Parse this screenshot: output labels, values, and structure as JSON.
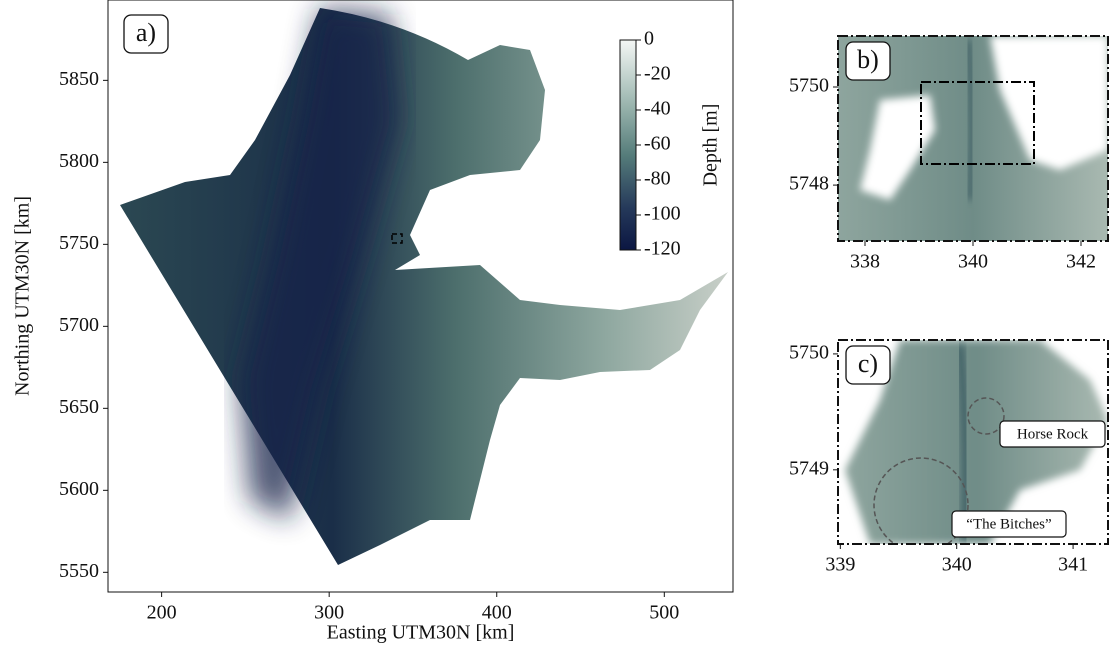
{
  "panels": [
    {
      "label": "a)",
      "xlabel": "Easting UTM30N [km]",
      "ylabel": "Northing UTM30N [km]",
      "xlim": [
        168,
        541
      ],
      "ylim": [
        5538,
        5899
      ],
      "xticks": [
        200,
        300,
        400,
        500
      ],
      "yticks": [
        5550,
        5600,
        5650,
        5700,
        5750,
        5800,
        5850
      ]
    },
    {
      "label": "b)",
      "xlim": [
        337.5,
        342.5
      ],
      "ylim": [
        5746.86,
        5751.04
      ],
      "xticks": [
        338,
        340,
        342
      ],
      "yticks": [
        5748,
        5750
      ]
    },
    {
      "label": "c)",
      "xlim": [
        338.98,
        341.3
      ],
      "ylim": [
        5748.36,
        5750.12
      ],
      "xticks": [
        339,
        340,
        341
      ],
      "yticks": [
        5749,
        5750
      ],
      "annotations": [
        "Horse Rock",
        "“The Bitches”"
      ]
    }
  ],
  "colorbar": {
    "label": "Depth [m]",
    "lim": [
      -120,
      0
    ],
    "ticks": [
      0,
      -20,
      -40,
      -60,
      -80,
      -100,
      -120
    ]
  }
}
